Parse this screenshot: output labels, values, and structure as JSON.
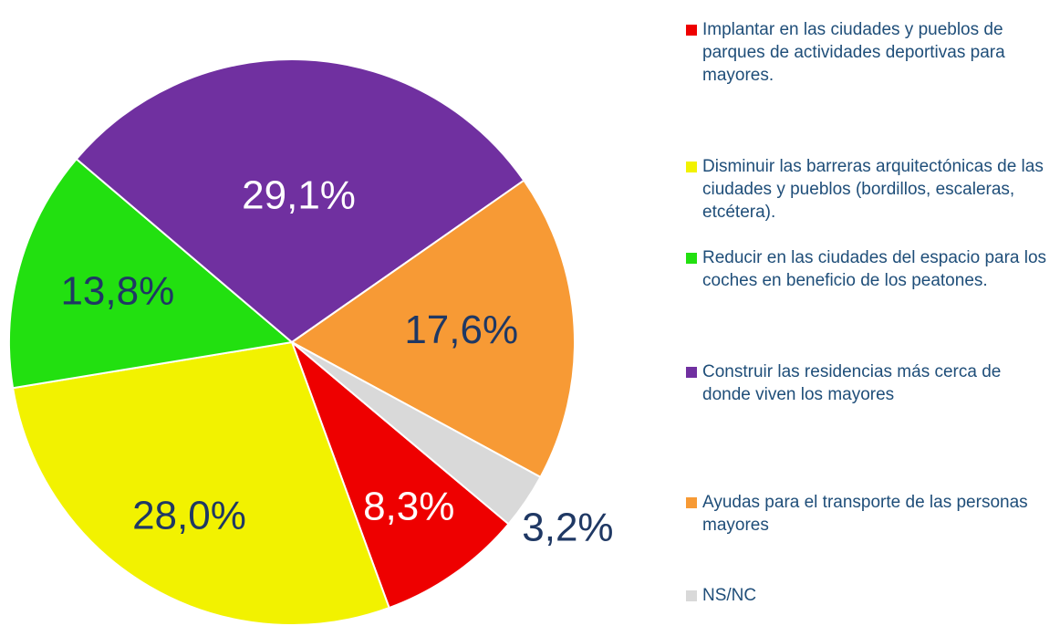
{
  "chart_data": {
    "type": "pie",
    "categories": [
      "Implantar en las ciudades y pueblos de parques de actividades deportivas para mayores.",
      "Disminuir las barreras arquitectónicas de las ciudades y pueblos (bordillos, escaleras, etcétera).",
      "Reducir en las ciudades del espacio para los coches en beneficio de los peatones.",
      "Construir las residencias más cerca de donde viven los mayores",
      "Ayudas para el transporte de las personas mayores",
      "NS/NC"
    ],
    "values": [
      8.3,
      28.0,
      13.8,
      29.1,
      17.6,
      3.2
    ],
    "value_labels": [
      "8,3%",
      "28,0%",
      "13,8%",
      "29,1%",
      "17,6%",
      "3,2%"
    ],
    "colors": [
      "#ee0000",
      "#f2f200",
      "#22e010",
      "#7030a0",
      "#f79a35",
      "#d9d9d9"
    ],
    "label_colors": [
      "#ffffff",
      "#1f3864",
      "#1f3864",
      "#ffffff",
      "#1f3864",
      "#1f3864"
    ],
    "legend": "right"
  }
}
